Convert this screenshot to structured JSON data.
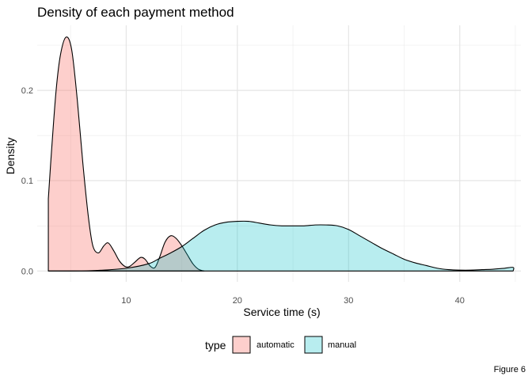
{
  "chart_data": {
    "type": "area",
    "title": "Density of each payment method",
    "xlabel": "Service time (s)",
    "ylabel": "Density",
    "xlim": [
      2,
      45.5
    ],
    "ylim": [
      -0.012,
      0.272
    ],
    "x_ticks": [
      10,
      20,
      30,
      40
    ],
    "y_ticks": [
      0.0,
      0.1,
      0.2
    ],
    "y_tick_labels": [
      "0.0",
      "0.1",
      "0.2"
    ],
    "grid": true,
    "legend_title": "type",
    "legend_position": "bottom",
    "series": [
      {
        "name": "automatic",
        "color": "#F8766D",
        "points": [
          [
            3,
            0.08
          ],
          [
            3.3,
            0.135
          ],
          [
            3.7,
            0.2
          ],
          [
            4.1,
            0.24
          ],
          [
            4.6,
            0.259
          ],
          [
            5.1,
            0.245
          ],
          [
            5.6,
            0.19
          ],
          [
            6.1,
            0.12
          ],
          [
            6.6,
            0.06
          ],
          [
            7.0,
            0.028
          ],
          [
            7.5,
            0.02
          ],
          [
            8.0,
            0.028
          ],
          [
            8.4,
            0.031
          ],
          [
            8.9,
            0.022
          ],
          [
            9.4,
            0.011
          ],
          [
            9.9,
            0.005
          ],
          [
            10.3,
            0.005
          ],
          [
            10.8,
            0.01
          ],
          [
            11.3,
            0.015
          ],
          [
            11.7,
            0.013
          ],
          [
            12.2,
            0.005
          ],
          [
            12.6,
            0.004
          ],
          [
            13.0,
            0.015
          ],
          [
            13.5,
            0.032
          ],
          [
            14.0,
            0.039
          ],
          [
            14.5,
            0.036
          ],
          [
            15.0,
            0.028
          ],
          [
            15.5,
            0.018
          ],
          [
            16.0,
            0.008
          ],
          [
            16.5,
            0.002
          ],
          [
            17.0,
            0.0
          ]
        ]
      },
      {
        "name": "manual",
        "color": "#00BFC4",
        "points": [
          [
            3,
            0.0
          ],
          [
            6,
            0.0
          ],
          [
            8,
            0.001
          ],
          [
            10,
            0.003
          ],
          [
            12,
            0.008
          ],
          [
            13,
            0.014
          ],
          [
            14,
            0.02
          ],
          [
            15,
            0.027
          ],
          [
            16,
            0.036
          ],
          [
            17,
            0.045
          ],
          [
            18,
            0.051
          ],
          [
            19,
            0.054
          ],
          [
            20,
            0.055
          ],
          [
            21,
            0.055
          ],
          [
            22,
            0.053
          ],
          [
            23,
            0.051
          ],
          [
            24,
            0.05
          ],
          [
            25,
            0.05
          ],
          [
            26,
            0.05
          ],
          [
            27,
            0.051
          ],
          [
            28,
            0.051
          ],
          [
            29,
            0.05
          ],
          [
            30,
            0.046
          ],
          [
            31,
            0.039
          ],
          [
            32,
            0.032
          ],
          [
            33,
            0.025
          ],
          [
            34,
            0.019
          ],
          [
            35,
            0.013
          ],
          [
            36,
            0.009
          ],
          [
            37,
            0.006
          ],
          [
            38,
            0.003
          ],
          [
            39,
            0.0015
          ],
          [
            40,
            0.001
          ],
          [
            41,
            0.001
          ],
          [
            42,
            0.0015
          ],
          [
            43,
            0.002
          ],
          [
            44,
            0.003
          ],
          [
            44.8,
            0.004
          ],
          [
            44.8,
            0.0
          ]
        ]
      }
    ]
  },
  "caption": "Figure 6"
}
